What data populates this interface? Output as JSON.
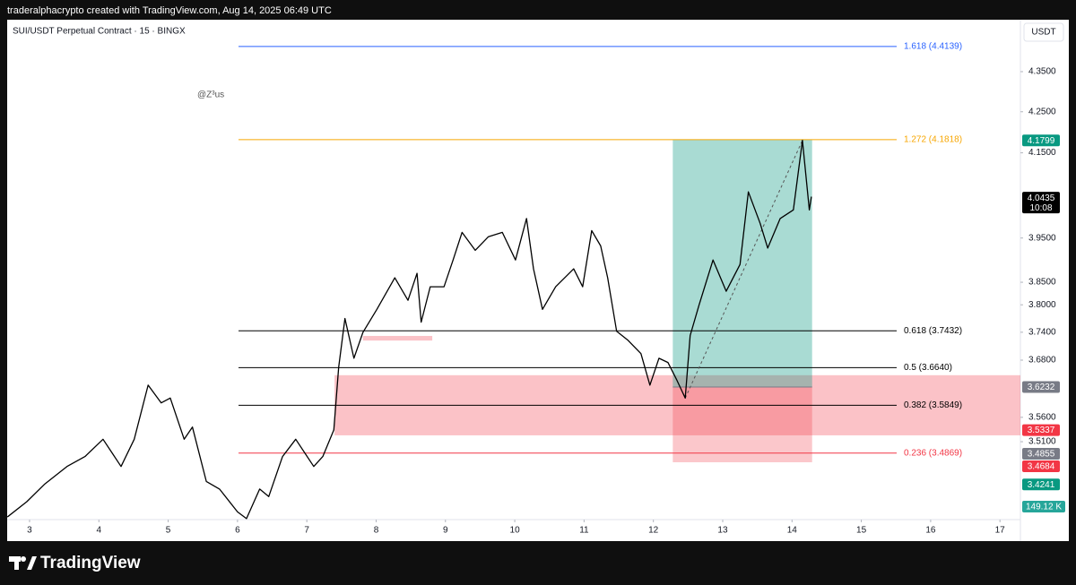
{
  "header": "traderalphacrypto created with TradingView.com, Aug 14, 2025 06:49 UTC",
  "footer_logo": "TradingView",
  "chart_data": {
    "type": "line",
    "title": "SUI/USDT Perpetual Contract · 15 · BINGX",
    "watermark": "@Z³us",
    "currency": "USDT",
    "color": "#000000",
    "x": [
      2.68,
      2.96,
      3.22,
      3.54,
      3.8,
      4.06,
      4.32,
      4.51,
      4.71,
      4.9,
      5.03,
      5.23,
      5.35,
      5.55,
      5.74,
      6.0,
      6.13,
      6.32,
      6.45,
      6.65,
      6.84,
      7.1,
      7.23,
      7.39,
      7.46,
      7.55,
      7.68,
      7.81,
      8.01,
      8.27,
      8.46,
      8.59,
      8.65,
      8.78,
      8.98,
      9.11,
      9.24,
      9.43,
      9.62,
      9.82,
      10.01,
      10.17,
      10.27,
      10.4,
      10.59,
      10.85,
      10.98,
      11.11,
      11.24,
      11.34,
      11.47,
      11.63,
      11.82,
      11.95,
      12.08,
      12.21,
      12.34,
      12.46,
      12.53,
      12.66,
      12.86,
      13.05,
      13.25,
      13.37,
      13.54,
      13.65,
      13.83,
      14.02,
      14.15,
      14.25,
      14.28
    ],
    "values": [
      3.36,
      3.39,
      3.425,
      3.46,
      3.48,
      3.515,
      3.46,
      3.515,
      3.627,
      3.59,
      3.6,
      3.515,
      3.54,
      3.43,
      3.415,
      3.37,
      3.357,
      3.415,
      3.4,
      3.48,
      3.515,
      3.46,
      3.48,
      3.534,
      3.665,
      3.77,
      3.684,
      3.74,
      3.79,
      3.86,
      3.81,
      3.87,
      3.762,
      3.84,
      3.84,
      3.9,
      3.963,
      3.922,
      3.953,
      3.963,
      3.9,
      3.995,
      3.88,
      3.79,
      3.84,
      3.88,
      3.84,
      3.967,
      3.932,
      3.86,
      3.742,
      3.723,
      3.694,
      3.627,
      3.684,
      3.675,
      3.637,
      3.6,
      3.733,
      3.8,
      3.9,
      3.83,
      3.89,
      4.057,
      3.984,
      3.927,
      3.995,
      4.015,
      4.18,
      4.015,
      4.046
    ],
    "xlim": [
      2.677,
      17.295
    ],
    "xticks": [
      3,
      4,
      5,
      6,
      7,
      8,
      9,
      10,
      11,
      12,
      13,
      14,
      15,
      16,
      17
    ],
    "ylim": [
      3.355,
      4.483
    ],
    "log_scale": true,
    "yticks": [
      {
        "value": 4.35,
        "label": "4.3500"
      },
      {
        "value": 4.25,
        "label": "4.2500"
      },
      {
        "value": 4.15,
        "label": "4.1500"
      },
      {
        "value": 3.95,
        "label": "3.9500"
      },
      {
        "value": 3.85,
        "label": "3.8500"
      },
      {
        "value": 3.8,
        "label": "3.8000"
      },
      {
        "value": 3.74,
        "label": "3.7400"
      },
      {
        "value": 3.68,
        "label": "3.6800"
      },
      {
        "value": 3.56,
        "label": "3.5600"
      },
      {
        "value": 3.51,
        "label": "3.5100"
      }
    ],
    "fib_levels": [
      {
        "value": 4.4139,
        "label": "1.618 (4.4139)",
        "color": "#2962ff"
      },
      {
        "value": 4.1818,
        "label": "1.272 (4.1818)",
        "color": "#f7a600"
      },
      {
        "value": 3.7432,
        "label": "0.618 (3.7432)",
        "color": "#000000"
      },
      {
        "value": 3.664,
        "label": "0.5 (3.6640)",
        "color": "#000000"
      },
      {
        "value": 3.5849,
        "label": "0.382 (3.5849)",
        "color": "#000000"
      },
      {
        "value": 3.4869,
        "label": "0.236 (3.4869)",
        "color": "#f23645"
      }
    ],
    "zones": [
      {
        "start": 7.4,
        "end": 17.295,
        "top": 3.648,
        "bottom": 3.523
      },
      {
        "start": 7.81,
        "end": 8.81,
        "top": 3.732,
        "bottom": 3.722
      }
    ],
    "position": {
      "start": 12.28,
      "end": 14.29,
      "target": 4.1818,
      "entry": 3.6232,
      "stop": 3.4684
    },
    "trend_line": {
      "x": [
        12.46,
        14.15
      ],
      "values": [
        3.6,
        4.18
      ]
    },
    "price_labels": [
      {
        "value": 4.1799,
        "color": "#089981"
      },
      {
        "value": 4.0435,
        "color": "#000000",
        "countdown": "10:08"
      },
      {
        "value": 3.6232,
        "color": "#787b86"
      },
      {
        "value": 3.5337,
        "color": "#f23645"
      },
      {
        "value": 3.4855,
        "color": "#787b86"
      },
      {
        "value": 3.4684,
        "color": "#f23645"
      },
      {
        "value": 3.4241,
        "color": "#089981"
      }
    ],
    "volume_label": "149.12 K"
  }
}
